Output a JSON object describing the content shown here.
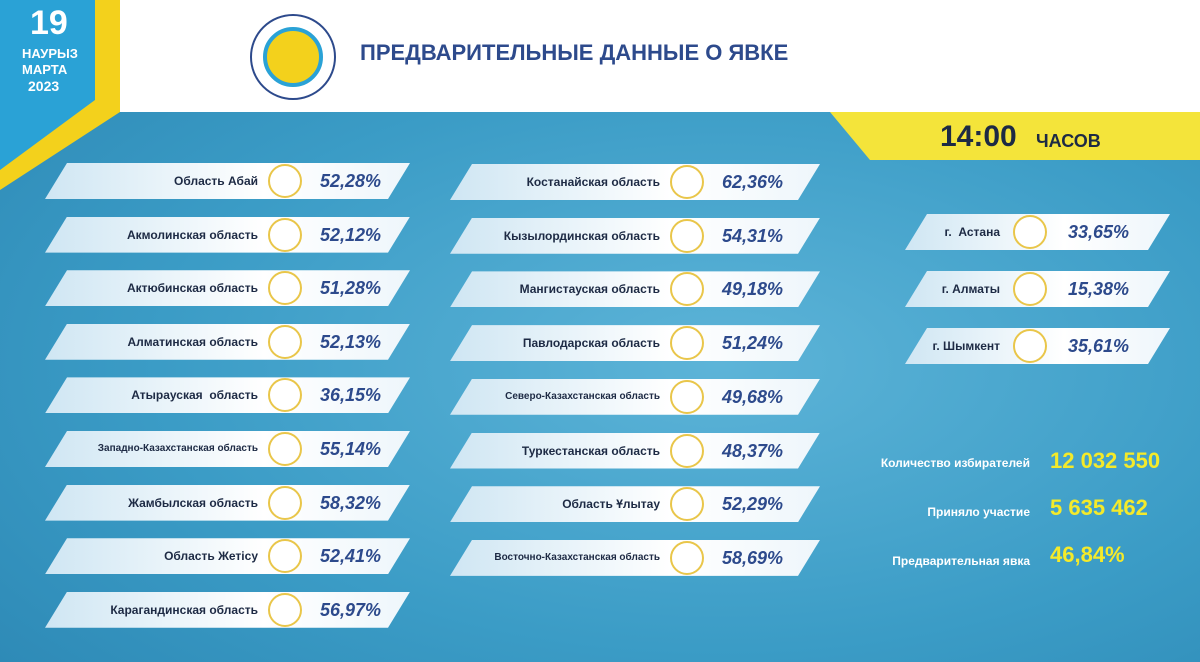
{
  "header": {
    "date_day": "19",
    "date_word1": "НАУРЫЗ",
    "date_word2": "МАРТА",
    "date_year": "2023",
    "title": "ПРЕДВАРИТЕЛЬНЫЕ ДАННЫЕ О ЯВКЕ"
  },
  "time": {
    "hour": "14:00",
    "unit": "ЧАСОВ"
  },
  "columns": [
    [
      {
        "name": "Область Абай",
        "value": "52,28%"
      },
      {
        "name": "Акмолинская область",
        "value": "52,12%"
      },
      {
        "name": "Актюбинская область",
        "value": "51,28%"
      },
      {
        "name": "Алматинская область",
        "value": "52,13%"
      },
      {
        "name": "Атырауская  область",
        "value": "36,15%"
      },
      {
        "name": "Западно-Казахстанская область",
        "value": "55,14%"
      },
      {
        "name": "Жамбылская область",
        "value": "58,32%"
      },
      {
        "name": "Область Жетісу",
        "value": "52,41%"
      },
      {
        "name": "Карагандинская область",
        "value": "56,97%"
      }
    ],
    [
      {
        "name": "Костанайская область",
        "value": "62,36%"
      },
      {
        "name": "Кызылординская область",
        "value": "54,31%"
      },
      {
        "name": "Мангистауская область",
        "value": "49,18%"
      },
      {
        "name": "Павлодарская область",
        "value": "51,24%"
      },
      {
        "name": "Северо-Казахстанская область",
        "value": "49,68%"
      },
      {
        "name": "Туркестанская область",
        "value": "48,37%"
      },
      {
        "name": "Область Ұлытау",
        "value": "52,29%"
      },
      {
        "name": "Восточно-Казахстанская область",
        "value": "58,69%"
      }
    ],
    [
      {
        "name": "г.  Астана",
        "value": "33,65%"
      },
      {
        "name": "г. Алматы",
        "value": "15,38%"
      },
      {
        "name": "г. Шымкент",
        "value": "35,61%"
      }
    ]
  ],
  "totals": [
    {
      "label": "Количество избирателей",
      "value": "12 032 550"
    },
    {
      "label": "Приняло участие",
      "value": "5 635 462"
    },
    {
      "label": "Предварительная явка",
      "value": "46,84%"
    }
  ]
}
